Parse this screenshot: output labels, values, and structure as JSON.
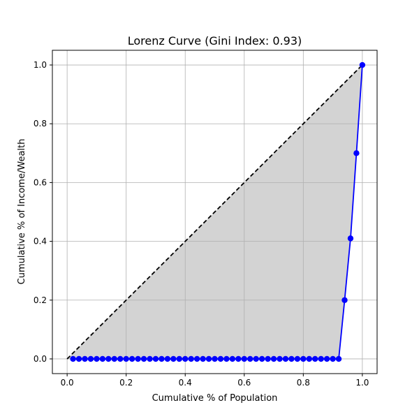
{
  "chart_data": {
    "type": "line",
    "title": "Lorenz Curve (Gini Index: 0.93)",
    "xlabel": "Cumulative % of Population",
    "ylabel": "Cumulative % of Income/Wealth",
    "xlim": [
      -0.05,
      1.05
    ],
    "ylim": [
      -0.05,
      1.05
    ],
    "xticks": [
      0.0,
      0.2,
      0.4,
      0.6,
      0.8,
      1.0
    ],
    "yticks": [
      0.0,
      0.2,
      0.4,
      0.6,
      0.8,
      1.0
    ],
    "xtick_labels": [
      "0.0",
      "0.2",
      "0.4",
      "0.6",
      "0.8",
      "1.0"
    ],
    "ytick_labels": [
      "0.0",
      "0.2",
      "0.4",
      "0.6",
      "0.8",
      "1.0"
    ],
    "grid": true,
    "series": [
      {
        "style": "line-with-markers",
        "color": "#0000ff",
        "x": [
          0.02,
          0.04,
          0.06,
          0.08,
          0.1,
          0.12,
          0.14,
          0.16,
          0.18,
          0.2,
          0.22,
          0.24,
          0.26,
          0.28,
          0.3,
          0.32,
          0.34,
          0.36,
          0.38,
          0.4,
          0.42,
          0.44,
          0.46,
          0.48,
          0.5,
          0.52,
          0.54,
          0.56,
          0.58,
          0.6,
          0.62,
          0.64,
          0.66,
          0.68,
          0.7,
          0.72,
          0.74,
          0.76,
          0.78,
          0.8,
          0.82,
          0.84,
          0.86,
          0.88,
          0.9,
          0.92,
          0.94,
          0.96,
          0.98,
          1.0
        ],
        "y": [
          0,
          0,
          0,
          0,
          0,
          0,
          0,
          0,
          0,
          0,
          0,
          0,
          0,
          0,
          0,
          0,
          0,
          0,
          0,
          0,
          0,
          0,
          0,
          0,
          0,
          0,
          0,
          0,
          0,
          0,
          0,
          0,
          0,
          0,
          0,
          0,
          0,
          0,
          0,
          0,
          0,
          0,
          0,
          0,
          0,
          0,
          0.2,
          0.41,
          0.7,
          1.0
        ]
      },
      {
        "style": "dashed-line",
        "color": "#000000",
        "x": [
          0.0,
          1.0
        ],
        "y": [
          0.0,
          1.0
        ]
      }
    ],
    "fill_between": {
      "color": "#d3d3d3",
      "description_of_region": "between equality line and curve"
    }
  }
}
